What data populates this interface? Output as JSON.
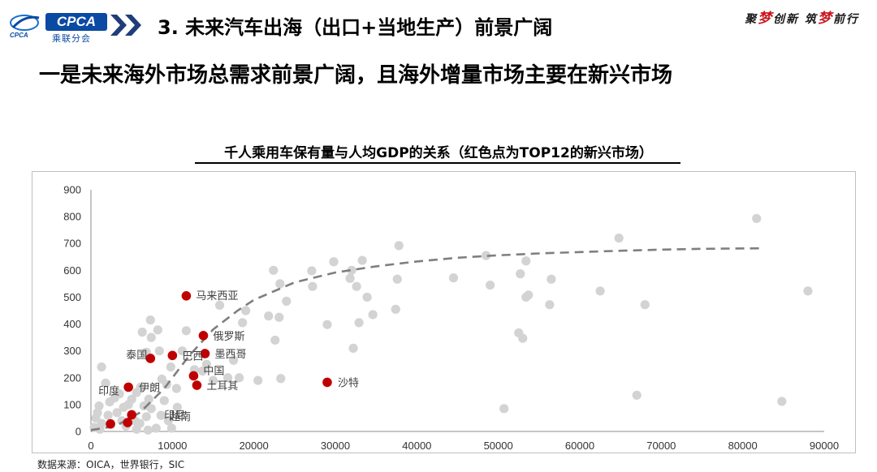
{
  "header": {
    "logo_text": "CPCA",
    "logo_sub": "乘联分会",
    "title": "3. 未来汽车出海（出口+当地生产）前景广阔",
    "slogan": [
      "聚",
      "梦",
      "创新 筑",
      "梦",
      "前行"
    ]
  },
  "headline": "一是未来海外市场总需求前景广阔，且海外增量市场主要在新兴市场",
  "chart_data": {
    "type": "scatter",
    "title": "千人乘用车保有量与人均GDP的关系（红色点为TOP12的新兴市场）",
    "xlabel": "",
    "ylabel": "",
    "xlim": [
      0,
      90000
    ],
    "ylim": [
      0,
      900
    ],
    "x_ticks": [
      "0",
      "10000",
      "20000",
      "30000",
      "40000",
      "50000",
      "60000",
      "70000",
      "80000",
      "90000"
    ],
    "y_ticks": [
      "0",
      "100",
      "200",
      "300",
      "400",
      "500",
      "600",
      "700",
      "800",
      "900"
    ],
    "colors": {
      "other": "#d3d3d3",
      "highlight": "#c00000",
      "trend": "#7f7f7f",
      "label": "#404040"
    },
    "series": [
      {
        "role": "highlighted",
        "points": [
          {
            "x": 11700,
            "y": 505,
            "label": "马来西亚"
          },
          {
            "x": 13800,
            "y": 357,
            "label": "俄罗斯"
          },
          {
            "x": 10000,
            "y": 283,
            "label": "巴西"
          },
          {
            "x": 14000,
            "y": 290,
            "label": "墨西哥"
          },
          {
            "x": 7300,
            "y": 272,
            "label": "泰国"
          },
          {
            "x": 12600,
            "y": 207,
            "label": "中国"
          },
          {
            "x": 13000,
            "y": 172,
            "label": "土耳其"
          },
          {
            "x": 29000,
            "y": 183,
            "label": "沙特"
          },
          {
            "x": 4600,
            "y": 165,
            "label": "伊朗"
          },
          {
            "x": 2400,
            "y": 28,
            "label": "印度"
          },
          {
            "x": 5000,
            "y": 62,
            "label": "印尼"
          },
          {
            "x": 4500,
            "y": 33,
            "label": "越南"
          }
        ]
      },
      {
        "role": "other",
        "points": [
          [
            81700,
            793
          ],
          [
            88000,
            523
          ],
          [
            84800,
            112
          ],
          [
            67000,
            135
          ],
          [
            68000,
            472
          ],
          [
            62500,
            523
          ],
          [
            64800,
            720
          ],
          [
            56500,
            567
          ],
          [
            56300,
            472
          ],
          [
            53700,
            508
          ],
          [
            53400,
            500
          ],
          [
            53400,
            635
          ],
          [
            52700,
            587
          ],
          [
            53000,
            347
          ],
          [
            52500,
            367
          ],
          [
            50700,
            85
          ],
          [
            49000,
            545
          ],
          [
            48500,
            655
          ],
          [
            44500,
            572
          ],
          [
            37800,
            692
          ],
          [
            37600,
            567
          ],
          [
            37400,
            455
          ],
          [
            34600,
            435
          ],
          [
            33900,
            500
          ],
          [
            33300,
            637
          ],
          [
            32900,
            405
          ],
          [
            32600,
            540
          ],
          [
            32200,
            310
          ],
          [
            32000,
            600
          ],
          [
            31800,
            570
          ],
          [
            29800,
            632
          ],
          [
            29000,
            398
          ],
          [
            27100,
            598
          ],
          [
            27200,
            540
          ],
          [
            24000,
            485
          ],
          [
            23200,
            550
          ],
          [
            23100,
            425
          ],
          [
            23300,
            197
          ],
          [
            22600,
            340
          ],
          [
            22400,
            600
          ],
          [
            21800,
            430
          ],
          [
            20500,
            190
          ],
          [
            19000,
            450
          ],
          [
            18600,
            405
          ],
          [
            18200,
            200
          ],
          [
            17500,
            265
          ],
          [
            16800,
            200
          ],
          [
            15800,
            470
          ],
          [
            15000,
            190
          ],
          [
            14200,
            250
          ],
          [
            13700,
            225
          ],
          [
            12700,
            230
          ],
          [
            11700,
            375
          ],
          [
            11200,
            300
          ],
          [
            10500,
            160
          ],
          [
            9800,
            240
          ],
          [
            9300,
            175
          ],
          [
            8700,
            195
          ],
          [
            8400,
            300
          ],
          [
            8200,
            378
          ],
          [
            7300,
            415
          ],
          [
            7400,
            350
          ],
          [
            6300,
            370
          ],
          [
            6800,
            295
          ],
          [
            6100,
            165
          ],
          [
            5600,
            145
          ],
          [
            5000,
            120
          ],
          [
            4600,
            100
          ],
          [
            4000,
            90
          ],
          [
            3500,
            140
          ],
          [
            2900,
            125
          ],
          [
            2300,
            110
          ],
          [
            1800,
            180
          ],
          [
            1300,
            240
          ],
          [
            1000,
            95
          ],
          [
            800,
            70
          ],
          [
            600,
            50
          ],
          [
            1300,
            30
          ],
          [
            2100,
            60
          ],
          [
            3200,
            70
          ],
          [
            3800,
            40
          ],
          [
            4300,
            20
          ],
          [
            5400,
            40
          ],
          [
            6000,
            30
          ],
          [
            6800,
            55
          ],
          [
            7400,
            85
          ],
          [
            8600,
            60
          ],
          [
            9500,
            40
          ],
          [
            9900,
            12
          ],
          [
            8000,
            12
          ],
          [
            7000,
            5
          ],
          [
            5600,
            8
          ],
          [
            1100,
            8
          ],
          [
            400,
            15
          ],
          [
            9000,
            115
          ],
          [
            10600,
            90
          ],
          [
            7100,
            120
          ],
          [
            6500,
            95
          ]
        ]
      }
    ],
    "trend_curve": [
      [
        0,
        5
      ],
      [
        3000,
        20
      ],
      [
        6000,
        70
      ],
      [
        9000,
        160
      ],
      [
        12000,
        280
      ],
      [
        15000,
        380
      ],
      [
        18000,
        450
      ],
      [
        20000,
        490
      ],
      [
        25000,
        555
      ],
      [
        30000,
        592
      ],
      [
        35000,
        615
      ],
      [
        40000,
        633
      ],
      [
        45000,
        647
      ],
      [
        50000,
        656
      ],
      [
        55000,
        663
      ],
      [
        60000,
        668
      ],
      [
        65000,
        673
      ],
      [
        70000,
        677
      ],
      [
        75000,
        680
      ],
      [
        82000,
        682
      ]
    ]
  },
  "source": "数据来源：OICA，世界银行，SIC"
}
